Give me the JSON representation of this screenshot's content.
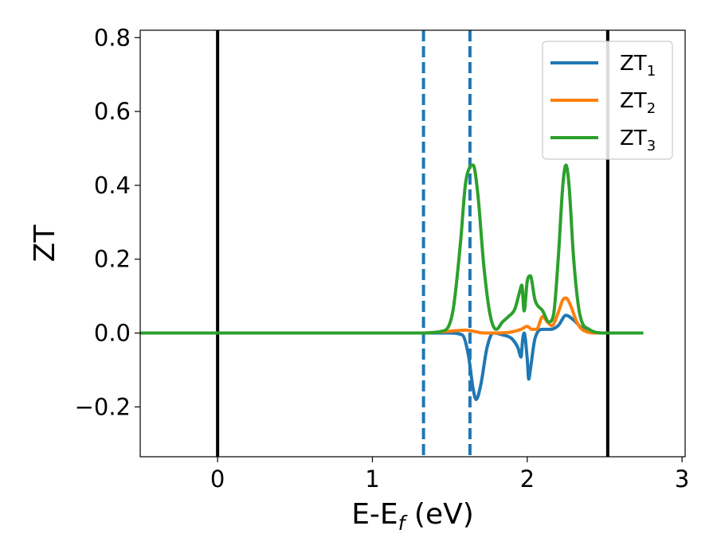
{
  "chart_data": {
    "type": "line",
    "title": "",
    "xlabel": {
      "main": "E-E",
      "sub": "f",
      "unit": " (eV)"
    },
    "ylabel": "ZT",
    "xlim": [
      -0.5,
      3.02
    ],
    "ylim": [
      -0.335,
      0.82
    ],
    "xticks": [
      0,
      1,
      2,
      3
    ],
    "xtick_labels": [
      "0",
      "1",
      "2",
      "3"
    ],
    "yticks": [
      -0.2,
      0.0,
      0.2,
      0.4,
      0.6,
      0.8
    ],
    "ytick_labels": [
      "−0.2",
      "0.0",
      "0.2",
      "0.4",
      "0.6",
      "0.8"
    ],
    "grid": false,
    "legend_position": "top-right",
    "reference_lines": [
      {
        "x": 0.0,
        "color": "#000000",
        "style": "solid"
      },
      {
        "x": 2.52,
        "color": "#000000",
        "style": "solid"
      },
      {
        "x": 1.33,
        "color": "#1f77b4",
        "style": "dashed"
      },
      {
        "x": 1.63,
        "color": "#1f77b4",
        "style": "dashed"
      }
    ],
    "series": [
      {
        "name": "ZT",
        "name_sub": "1",
        "color": "#1f77b4",
        "x": [
          -0.5,
          1.3,
          1.5,
          1.58,
          1.62,
          1.65,
          1.67,
          1.7,
          1.74,
          1.78,
          1.84,
          1.9,
          1.94,
          1.96,
          1.97,
          1.98,
          2.0,
          2.01,
          2.02,
          2.05,
          2.1,
          2.15,
          2.2,
          2.25,
          2.3,
          2.35,
          2.4,
          2.5,
          2.75
        ],
        "y": [
          0.0,
          0.0,
          0.0,
          -0.005,
          -0.06,
          -0.15,
          -0.18,
          -0.14,
          -0.04,
          0.0,
          -0.005,
          -0.015,
          -0.04,
          -0.065,
          -0.02,
          0.0,
          -0.07,
          -0.125,
          -0.1,
          -0.015,
          0.01,
          0.01,
          0.02,
          0.048,
          0.035,
          0.015,
          0.005,
          0.0,
          0.0
        ]
      },
      {
        "name": "ZT",
        "name_sub": "2",
        "color": "#ff7f0e",
        "x": [
          -0.5,
          1.3,
          1.5,
          1.6,
          1.65,
          1.72,
          1.8,
          1.9,
          1.96,
          2.0,
          2.03,
          2.06,
          2.1,
          2.13,
          2.16,
          2.2,
          2.23,
          2.25,
          2.28,
          2.32,
          2.36,
          2.45,
          2.75
        ],
        "y": [
          0.0,
          0.0,
          0.005,
          0.008,
          0.005,
          0.0,
          0.0,
          0.003,
          0.01,
          0.018,
          0.01,
          0.01,
          0.045,
          0.03,
          0.02,
          0.055,
          0.09,
          0.095,
          0.075,
          0.03,
          0.008,
          0.0,
          0.0
        ]
      },
      {
        "name": "ZT",
        "name_sub": "3",
        "color": "#2ca02c",
        "x": [
          -0.5,
          1.3,
          1.45,
          1.52,
          1.57,
          1.6,
          1.63,
          1.65,
          1.68,
          1.72,
          1.76,
          1.8,
          1.84,
          1.88,
          1.92,
          1.95,
          1.965,
          1.98,
          2.0,
          2.02,
          2.05,
          2.1,
          2.14,
          2.17,
          2.2,
          2.23,
          2.25,
          2.27,
          2.3,
          2.34,
          2.4,
          2.5,
          2.75
        ],
        "y": [
          0.0,
          0.0,
          0.005,
          0.06,
          0.25,
          0.4,
          0.45,
          0.455,
          0.38,
          0.18,
          0.05,
          0.01,
          0.03,
          0.045,
          0.065,
          0.11,
          0.13,
          0.06,
          0.14,
          0.155,
          0.09,
          0.06,
          0.03,
          0.05,
          0.2,
          0.4,
          0.455,
          0.4,
          0.2,
          0.05,
          0.01,
          0.0,
          0.0
        ]
      }
    ]
  }
}
